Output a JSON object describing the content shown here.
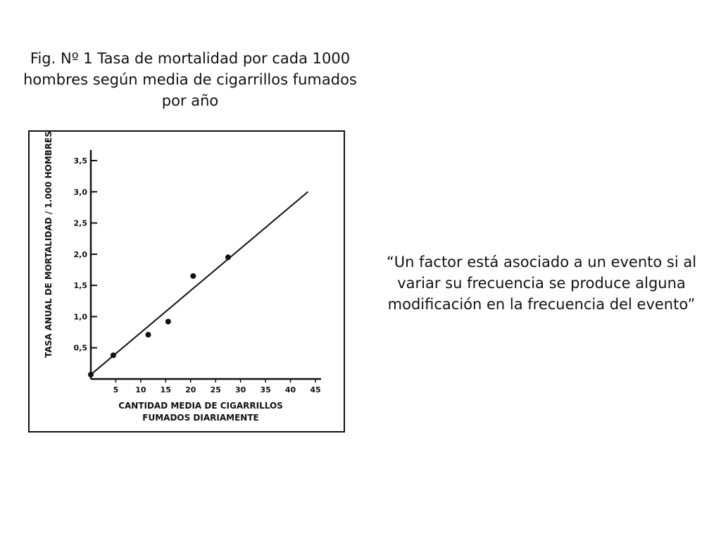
{
  "caption": {
    "line1": "Fig. Nº 1 Tasa de mortalidad por cada 1000",
    "line2": "hombres según media de cigarrillos fumados",
    "line3": "por año"
  },
  "quote": {
    "line1": "“Un factor está asociado a un evento si al",
    "line2": "variar su frecuencia se produce alguna",
    "line3": "modificación en la frecuencia del evento”"
  },
  "chart_data": {
    "type": "scatter",
    "title": "",
    "xlabel_line1": "CANTIDAD MEDIA DE CIGARRILLOS",
    "xlabel_line2": "FUMADOS DIARIAMENTE",
    "ylabel": "TASA ANUAL DE MORTALIDAD / 1.000 HOMBRES",
    "xlim": [
      0,
      45
    ],
    "ylim": [
      0,
      3.5
    ],
    "x_ticks": [
      {
        "value": 5,
        "label": "5"
      },
      {
        "value": 10,
        "label": "10"
      },
      {
        "value": 15,
        "label": "15"
      },
      {
        "value": 20,
        "label": "20"
      },
      {
        "value": 25,
        "label": "25"
      },
      {
        "value": 30,
        "label": "30"
      },
      {
        "value": 35,
        "label": "35"
      },
      {
        "value": 40,
        "label": "40"
      },
      {
        "value": 45,
        "label": "45"
      }
    ],
    "y_ticks": [
      {
        "value": 0.5,
        "label": "0,5"
      },
      {
        "value": 1.0,
        "label": "1,0"
      },
      {
        "value": 1.5,
        "label": "1,5"
      },
      {
        "value": 2.0,
        "label": "2,0"
      },
      {
        "value": 2.5,
        "label": "2,5"
      },
      {
        "value": 3.0,
        "label": "3,0"
      },
      {
        "value": 3.5,
        "label": "3,5"
      }
    ],
    "points": [
      {
        "x": 0,
        "y": 0.07
      },
      {
        "x": 4.5,
        "y": 0.38
      },
      {
        "x": 11.5,
        "y": 0.71
      },
      {
        "x": 15.5,
        "y": 0.92
      },
      {
        "x": 20.5,
        "y": 1.65
      },
      {
        "x": 27.5,
        "y": 1.95
      }
    ],
    "trend_line": {
      "from": {
        "x": 0,
        "y": 0.07
      },
      "to": {
        "x": 43.5,
        "y": 3.0
      }
    },
    "grid": false,
    "legend": "none"
  }
}
